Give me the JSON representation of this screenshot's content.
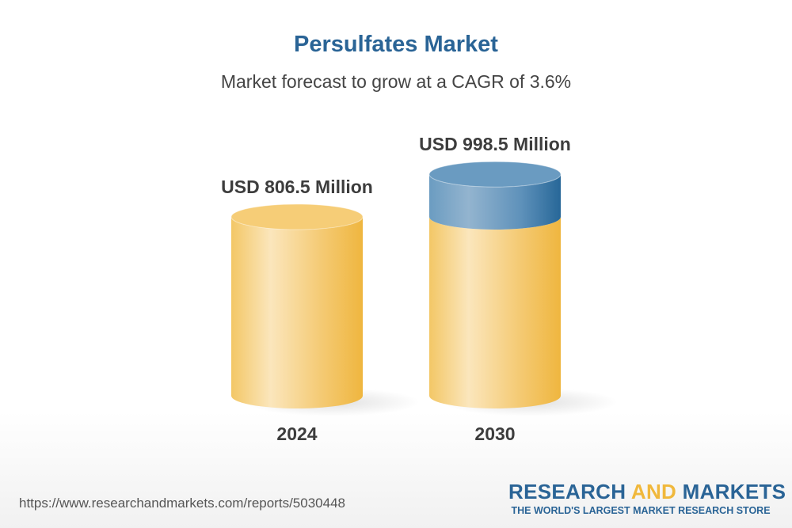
{
  "chart_data": {
    "type": "bar",
    "title": "Persulfates Market",
    "subtitle": "Market forecast to grow at a CAGR of 3.6%",
    "categories": [
      "2024",
      "2030"
    ],
    "values": [
      806.5,
      998.5
    ],
    "data_labels": [
      "USD 806.5 Million",
      "USD 998.5 Million"
    ],
    "unit": "USD Million",
    "style": "3d-cylinder",
    "colors": {
      "base": "#f2bf4a",
      "growth": "#2a6496",
      "title": "#2a6496"
    }
  },
  "footer": {
    "url": "https://www.researchandmarkets.com/reports/5030448",
    "logo_part1": "RESEARCH ",
    "logo_part2": "AND",
    "logo_part3": " MARKETS",
    "tagline": "THE WORLD'S LARGEST MARKET RESEARCH STORE"
  }
}
